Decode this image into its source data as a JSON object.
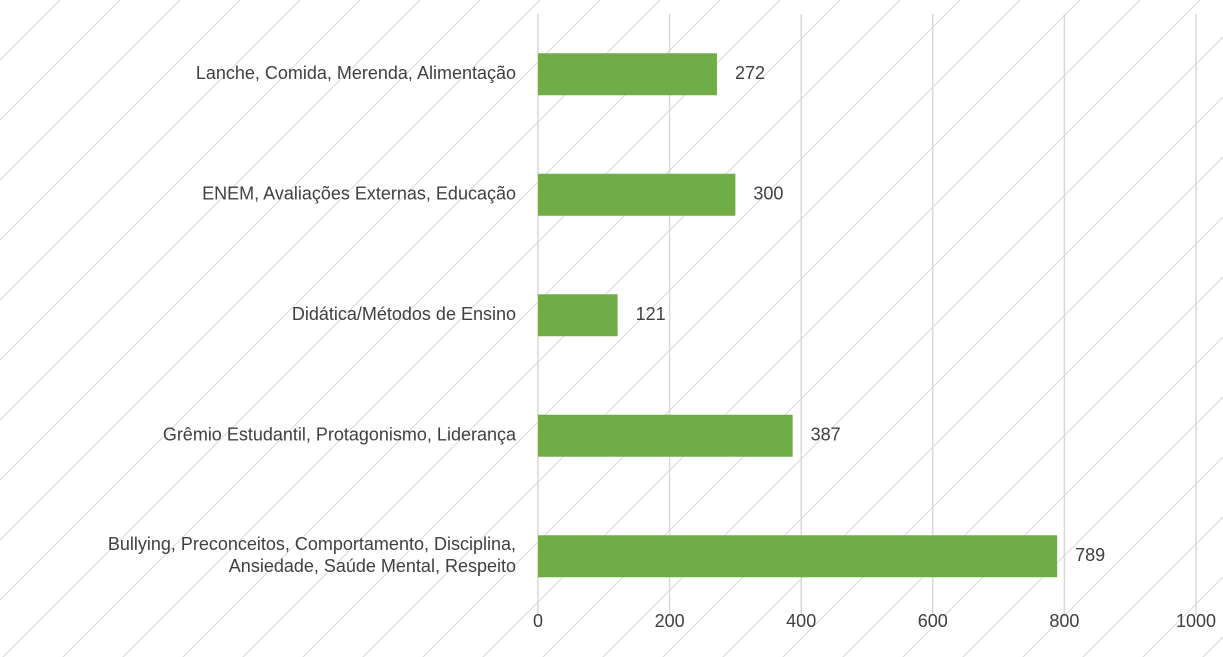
{
  "chart_data": {
    "type": "bar",
    "orientation": "horizontal",
    "categories": [
      [
        "Lanche, Comida, Merenda, Alimentação"
      ],
      [
        "ENEM, Avaliações Externas, Educação"
      ],
      [
        "Didática/Métodos de Ensino"
      ],
      [
        "Grêmio Estudantil, Protagonismo, Liderança"
      ],
      [
        "Bullying, Preconceitos, Comportamento, Disciplina,",
        "Ansiedade, Saúde Mental, Respeito"
      ]
    ],
    "values": [
      272,
      300,
      121,
      387,
      789
    ],
    "color": "#70ad47",
    "xlim": [
      0,
      1000
    ],
    "xticks": [
      0,
      200,
      400,
      600,
      800,
      1000
    ],
    "grid": true
  }
}
